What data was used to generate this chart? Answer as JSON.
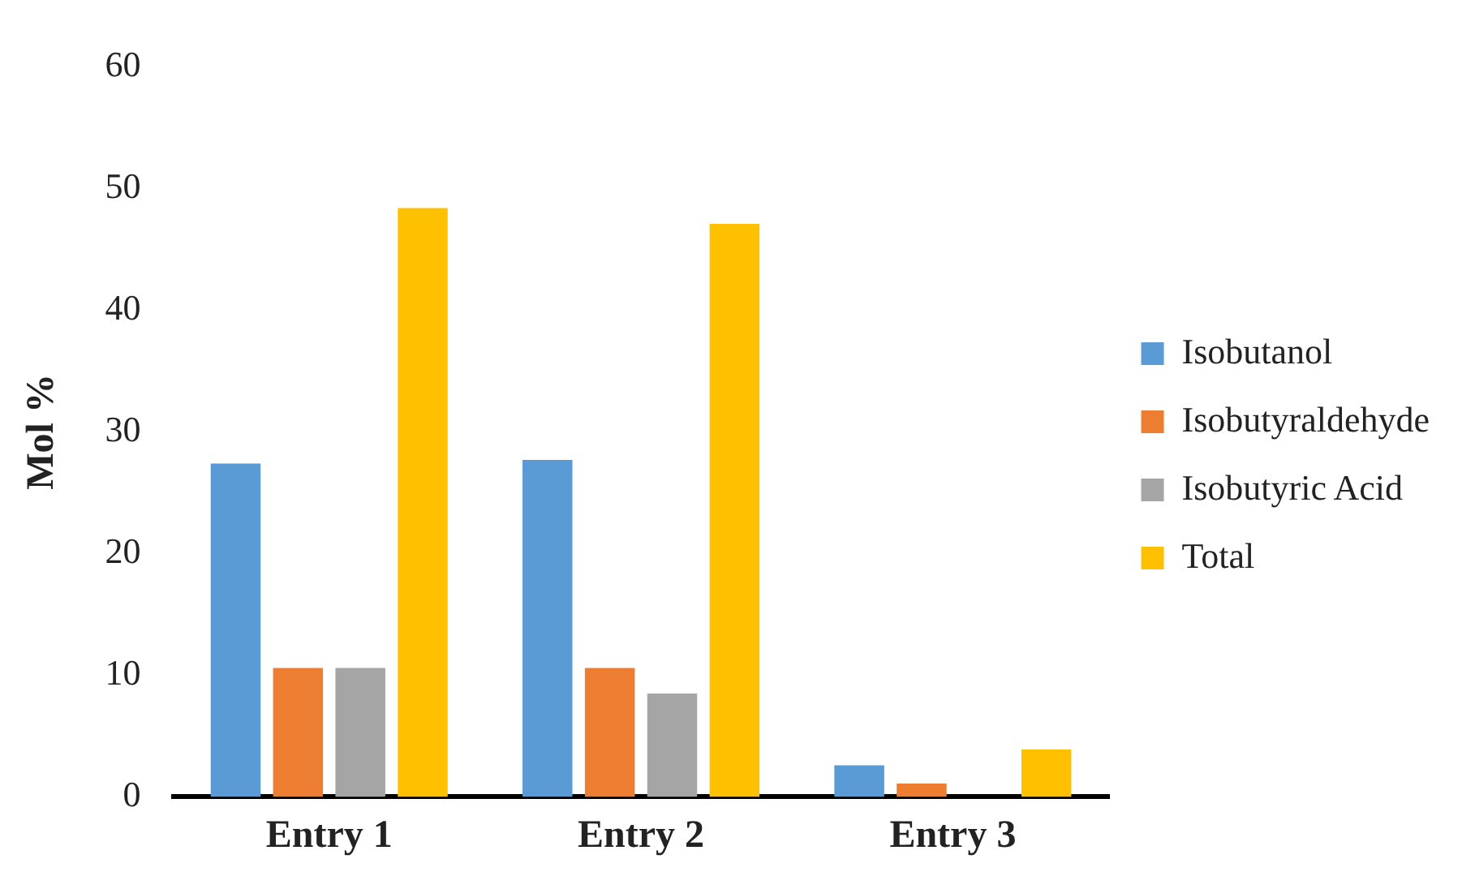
{
  "chart_data": {
    "type": "bar",
    "ylabel": "Mol %",
    "categories": [
      "Entry 1",
      "Entry 2",
      "Entry 3"
    ],
    "series": [
      {
        "name": "Isobutanol",
        "color": "#5b9bd5",
        "values": [
          27.4,
          27.7,
          2.6
        ]
      },
      {
        "name": "Isobutyraldehyde",
        "color": "#ed7d31",
        "values": [
          10.6,
          10.6,
          1.1
        ]
      },
      {
        "name": "Isobutyric Acid",
        "color": "#a5a5a5",
        "values": [
          10.6,
          8.5,
          0
        ]
      },
      {
        "name": "Total",
        "color": "#ffc000",
        "values": [
          48.4,
          47.1,
          3.9
        ]
      }
    ],
    "ylim": [
      0,
      60
    ],
    "yticks": [
      0,
      10,
      20,
      30,
      40,
      50,
      60
    ],
    "grid": false,
    "legend": "right"
  }
}
